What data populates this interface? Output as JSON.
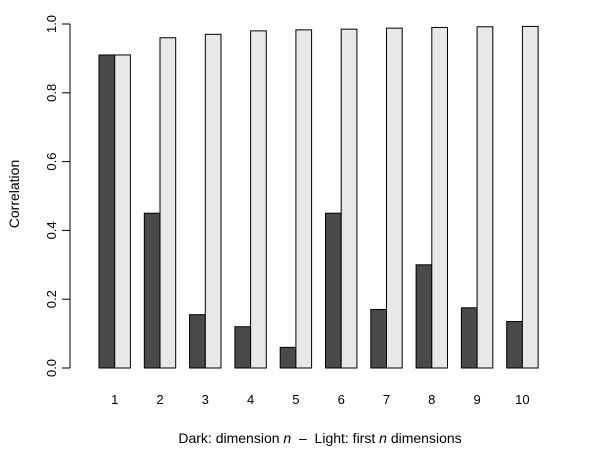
{
  "chart_data": {
    "type": "bar",
    "categories": [
      "1",
      "2",
      "3",
      "4",
      "5",
      "6",
      "7",
      "8",
      "9",
      "10"
    ],
    "series": [
      {
        "color": "#4a4a4a",
        "values": [
          0.91,
          0.45,
          0.155,
          0.12,
          0.06,
          0.45,
          0.17,
          0.3,
          0.175,
          0.135
        ]
      },
      {
        "color": "#e8e8e8",
        "values": [
          0.91,
          0.96,
          0.97,
          0.98,
          0.983,
          0.985,
          0.988,
          0.99,
          0.992,
          0.993
        ]
      }
    ],
    "ylabel": "Correlation",
    "xlabel": {
      "part1": "Dark: dimension ",
      "n1": "n",
      "part2": "  –  Light: first ",
      "n2": "n",
      "part3": " dimensions"
    },
    "ylim": [
      0,
      1
    ],
    "yticks": [
      "0.0",
      "0.2",
      "0.4",
      "0.6",
      "0.8",
      "1.0"
    ],
    "grid": false,
    "legend": "none"
  }
}
